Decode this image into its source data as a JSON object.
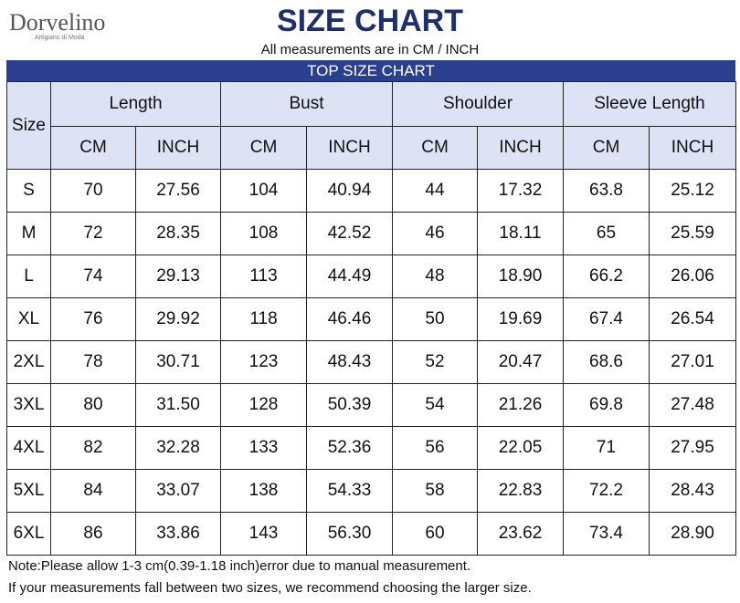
{
  "header": {
    "logo": "Dorvelino",
    "tagline": "Artigiano di Moda",
    "title": "SIZE CHART",
    "subtitle": "All measurements are in CM / INCH"
  },
  "table": {
    "title": "TOP SIZE CHART",
    "size_label": "Size",
    "groups": [
      "Length",
      "Bust",
      "Shoulder",
      "Sleeve Length"
    ],
    "units": [
      "CM",
      "INCH",
      "CM",
      "INCH",
      "CM",
      "INCH",
      "CM",
      "INCH"
    ],
    "rows": [
      [
        "S",
        "70",
        "27.56",
        "104",
        "40.94",
        "44",
        "17.32",
        "63.8",
        "25.12"
      ],
      [
        "M",
        "72",
        "28.35",
        "108",
        "42.52",
        "46",
        "18.11",
        "65",
        "25.59"
      ],
      [
        "L",
        "74",
        "29.13",
        "113",
        "44.49",
        "48",
        "18.90",
        "66.2",
        "26.06"
      ],
      [
        "XL",
        "76",
        "29.92",
        "118",
        "46.46",
        "50",
        "19.69",
        "67.4",
        "26.54"
      ],
      [
        "2XL",
        "78",
        "30.71",
        "123",
        "48.43",
        "52",
        "20.47",
        "68.6",
        "27.01"
      ],
      [
        "3XL",
        "80",
        "31.50",
        "128",
        "50.39",
        "54",
        "21.26",
        "69.8",
        "27.48"
      ],
      [
        "4XL",
        "82",
        "32.28",
        "133",
        "52.36",
        "56",
        "22.05",
        "71",
        "27.95"
      ],
      [
        "5XL",
        "84",
        "33.07",
        "138",
        "54.33",
        "58",
        "22.83",
        "72.2",
        "28.43"
      ],
      [
        "6XL",
        "86",
        "33.86",
        "143",
        "56.30",
        "60",
        "23.62",
        "73.4",
        "28.90"
      ]
    ]
  },
  "notes": [
    "Note:Please allow 1-3 cm(0.39-1.18 inch)error due to manual measurement.",
    "If your measurements fall between two sizes, we recommend choosing the larger size."
  ]
}
